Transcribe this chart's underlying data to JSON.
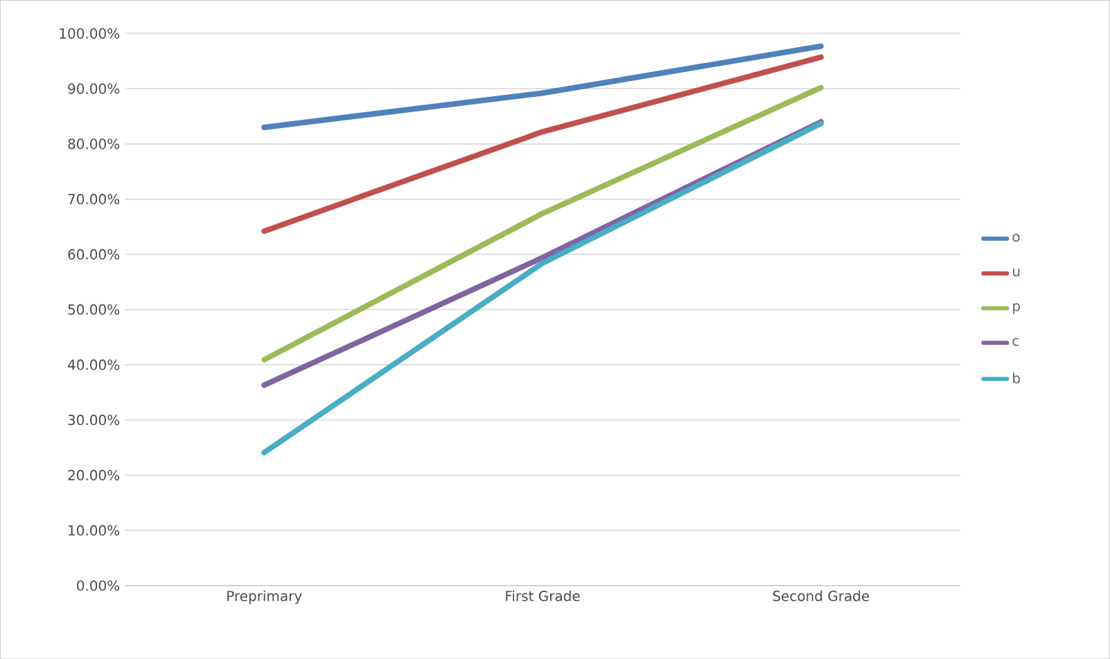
{
  "chart_data": {
    "type": "line",
    "categories": [
      "Preprimary",
      "First Grade",
      "Second Grade"
    ],
    "series": [
      {
        "name": "o",
        "color": "#4f81bd",
        "values": [
          83.0,
          89.2,
          97.7
        ]
      },
      {
        "name": "u",
        "color": "#c0504d",
        "values": [
          64.2,
          82.2,
          95.7
        ]
      },
      {
        "name": "p",
        "color": "#9bbb59",
        "values": [
          40.9,
          67.4,
          90.2
        ]
      },
      {
        "name": "c",
        "color": "#8064a2",
        "values": [
          36.3,
          59.4,
          84.0
        ]
      },
      {
        "name": "b",
        "color": "#4bacc6",
        "values": [
          24.1,
          58.4,
          83.7
        ]
      }
    ],
    "ylim": [
      0,
      100
    ],
    "yticks": [
      {
        "value": 0,
        "label": "0.00%"
      },
      {
        "value": 10,
        "label": "10.00%"
      },
      {
        "value": 20,
        "label": "20.00%"
      },
      {
        "value": 30,
        "label": "30.00%"
      },
      {
        "value": 40,
        "label": "40.00%"
      },
      {
        "value": 50,
        "label": "50.00%"
      },
      {
        "value": 60,
        "label": "60.00%"
      },
      {
        "value": 70,
        "label": "70.00%"
      },
      {
        "value": 80,
        "label": "80.00%"
      },
      {
        "value": 90,
        "label": "90.00%"
      },
      {
        "value": 100,
        "label": "100.00%"
      }
    ],
    "grid": "y",
    "legend": "right",
    "marker": "none",
    "line_style": "solid"
  }
}
